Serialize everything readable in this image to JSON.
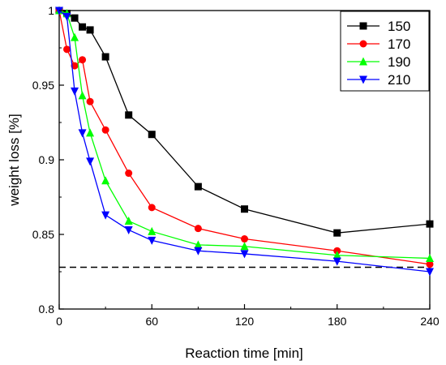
{
  "chart_data": {
    "type": "line",
    "title": "",
    "xlabel": "Reaction time [min]",
    "ylabel": "weight loss [%]",
    "xlim": [
      0,
      240
    ],
    "ylim": [
      0.8,
      1.0
    ],
    "xticks": [
      0,
      60,
      120,
      180,
      240
    ],
    "yticks": [
      0.8,
      0.85,
      0.9,
      0.95,
      1.0
    ],
    "ytick_labels": [
      "0.8",
      "0.85",
      "0.9",
      "0.95",
      "1"
    ],
    "grid": false,
    "legend_position": "top-right",
    "reference_line": {
      "style": "dashed",
      "y": 0.828,
      "color": "#000000"
    },
    "series": [
      {
        "name": "150",
        "color": "#000000",
        "marker": "square",
        "x": [
          0,
          5,
          10,
          15,
          20,
          30,
          45,
          60,
          90,
          120,
          180,
          240
        ],
        "y": [
          1.0,
          0.998,
          0.995,
          0.989,
          0.987,
          0.969,
          0.93,
          0.917,
          0.882,
          0.867,
          0.851,
          0.857
        ]
      },
      {
        "name": "170",
        "color": "#ff0000",
        "marker": "circle",
        "x": [
          0,
          5,
          10,
          15,
          20,
          30,
          45,
          60,
          90,
          120,
          180,
          240
        ],
        "y": [
          1.0,
          0.974,
          0.963,
          0.967,
          0.939,
          0.92,
          0.891,
          0.868,
          0.854,
          0.847,
          0.839,
          0.83
        ]
      },
      {
        "name": "190",
        "color": "#00ff00",
        "marker": "triangle-up",
        "x": [
          0,
          5,
          10,
          15,
          20,
          30,
          45,
          60,
          90,
          120,
          180,
          240
        ],
        "y": [
          1.0,
          0.998,
          0.982,
          0.943,
          0.918,
          0.886,
          0.859,
          0.852,
          0.843,
          0.842,
          0.836,
          0.834
        ]
      },
      {
        "name": "210",
        "color": "#0000ff",
        "marker": "triangle-down",
        "x": [
          0,
          5,
          10,
          15,
          20,
          30,
          45,
          60,
          90,
          120,
          180,
          240
        ],
        "y": [
          1.0,
          0.996,
          0.946,
          0.918,
          0.899,
          0.863,
          0.853,
          0.846,
          0.839,
          0.837,
          0.832,
          0.825
        ]
      }
    ]
  }
}
